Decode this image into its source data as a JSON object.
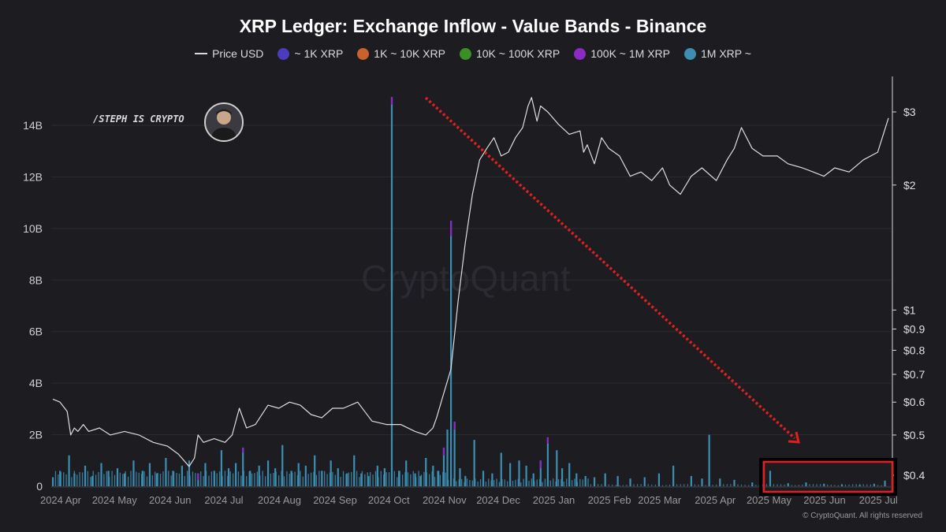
{
  "chart_data": {
    "type": "bar",
    "title": "XRP Ledger: Exchange Inflow - Value Bands - Binance",
    "legend": [
      {
        "name": "Price USD",
        "kind": "line",
        "color": "#d9d9d9"
      },
      {
        "name": "~ 1K XRP",
        "kind": "dot",
        "color": "#4a3bbf"
      },
      {
        "name": "1K ~ 10K XRP",
        "kind": "dot",
        "color": "#c9622b"
      },
      {
        "name": "10K ~ 100K XRP",
        "kind": "dot",
        "color": "#3a8f25"
      },
      {
        "name": "100K ~ 1M XRP",
        "kind": "dot",
        "color": "#8a2bc4"
      },
      {
        "name": "1M XRP ~",
        "kind": "dot",
        "color": "#3c8fb3"
      }
    ],
    "legend_position": "top-center",
    "x_ticks": [
      "2024 Apr",
      "2024 May",
      "2024 Jun",
      "2024 Jul",
      "2024 Aug",
      "2024 Sep",
      "2024 Oct",
      "2024 Nov",
      "2024 Dec",
      "2025 Jan",
      "2025 Feb",
      "2025 Mar",
      "2025 Apr",
      "2025 May",
      "2025 Jun",
      "2025 Jul"
    ],
    "y_left": {
      "ticks": [
        "0",
        "2B",
        "4B",
        "6B",
        "8B",
        "10B",
        "12B",
        "14B"
      ],
      "range": [
        0,
        15000000000
      ]
    },
    "y_right": {
      "scale": "log",
      "ticks": [
        "$0.4",
        "$0.5",
        "$0.6",
        "$0.7",
        "$0.8",
        "$0.9",
        "$1",
        "$2",
        "$3"
      ],
      "range": [
        0.36,
        3.5
      ]
    },
    "price_series": {
      "name": "Price USD",
      "x": [
        0,
        4,
        8,
        10,
        12,
        14,
        17,
        20,
        26,
        32,
        40,
        48,
        56,
        64,
        70,
        76,
        79,
        81,
        84,
        90,
        96,
        100,
        104,
        108,
        113,
        120,
        126,
        132,
        138,
        144,
        150,
        156,
        162,
        170,
        178,
        186,
        194,
        202,
        208,
        212,
        214,
        218,
        222,
        226,
        230,
        234,
        238,
        242,
        246,
        250,
        254,
        258,
        262,
        265,
        267,
        270,
        272,
        276,
        282,
        288,
        294,
        296,
        298,
        302,
        306,
        310,
        316,
        322,
        328,
        334,
        340,
        344,
        350,
        356,
        362,
        370,
        376,
        380,
        384,
        390,
        396,
        404,
        410,
        418,
        424,
        430,
        436,
        444,
        452,
        460,
        466
      ],
      "y": [
        0.61,
        0.6,
        0.57,
        0.5,
        0.52,
        0.51,
        0.53,
        0.51,
        0.52,
        0.5,
        0.51,
        0.5,
        0.48,
        0.47,
        0.45,
        0.42,
        0.44,
        0.5,
        0.48,
        0.49,
        0.48,
        0.5,
        0.58,
        0.52,
        0.53,
        0.59,
        0.58,
        0.6,
        0.59,
        0.56,
        0.55,
        0.58,
        0.58,
        0.6,
        0.54,
        0.53,
        0.53,
        0.51,
        0.5,
        0.52,
        0.55,
        0.63,
        0.72,
        1.05,
        1.45,
        1.9,
        2.3,
        2.45,
        2.6,
        2.35,
        2.4,
        2.6,
        2.75,
        3.1,
        3.25,
        2.85,
        3.1,
        3.0,
        2.8,
        2.65,
        2.7,
        2.4,
        2.5,
        2.25,
        2.6,
        2.45,
        2.35,
        2.1,
        2.15,
        2.05,
        2.2,
        2.0,
        1.9,
        2.1,
        2.2,
        2.05,
        2.3,
        2.45,
        2.75,
        2.45,
        2.35,
        2.35,
        2.25,
        2.2,
        2.15,
        2.1,
        2.2,
        2.15,
        2.3,
        2.4,
        2.9
      ]
    },
    "inflow_series": {
      "name": "1M XRP ~",
      "x": [
        0,
        4,
        9,
        12,
        18,
        22,
        27,
        31,
        36,
        40,
        45,
        50,
        54,
        58,
        63,
        67,
        72,
        76,
        81,
        85,
        90,
        94,
        98,
        102,
        106,
        110,
        115,
        120,
        124,
        128,
        133,
        137,
        141,
        146,
        150,
        155,
        159,
        164,
        168,
        172,
        176,
        181,
        185,
        189,
        193,
        197,
        202,
        205,
        208,
        212,
        215,
        218,
        220,
        222,
        224,
        227,
        230,
        235,
        240,
        245,
        250,
        255,
        260,
        264,
        268,
        272,
        276,
        281,
        284,
        288,
        292,
        297,
        302,
        308,
        315,
        322,
        330,
        338,
        346,
        356,
        362,
        366,
        372,
        380,
        390,
        400,
        410,
        420,
        430,
        440,
        450,
        458,
        464
      ],
      "y": [
        0.35,
        0.6,
        1.2,
        0.5,
        0.8,
        0.4,
        0.9,
        0.6,
        0.7,
        0.5,
        1.0,
        0.6,
        0.9,
        0.5,
        1.1,
        0.6,
        0.8,
        1.0,
        0.5,
        0.9,
        0.6,
        1.4,
        0.7,
        0.9,
        1.5,
        0.6,
        0.8,
        1.0,
        0.7,
        1.6,
        0.6,
        0.9,
        0.8,
        1.2,
        0.6,
        1.0,
        0.7,
        0.5,
        1.2,
        0.5,
        0.4,
        0.8,
        0.7,
        15.1,
        0.6,
        1.0,
        0.5,
        0.4,
        1.1,
        0.8,
        0.6,
        1.5,
        2.2,
        10.3,
        2.5,
        0.7,
        0.4,
        1.8,
        0.6,
        0.5,
        1.3,
        0.9,
        1.0,
        0.8,
        0.5,
        1.0,
        1.9,
        1.4,
        0.7,
        0.9,
        0.5,
        0.4,
        0.35,
        0.5,
        0.4,
        0.3,
        0.35,
        0.5,
        0.8,
        0.4,
        0.3,
        2.0,
        0.3,
        0.25,
        0.15,
        0.6,
        0.12,
        0.15,
        0.1,
        0.08,
        0.05,
        0.1,
        0.22
      ]
    },
    "purple_caps": [
      {
        "x": 189,
        "y": 0.3
      },
      {
        "x": 222,
        "y": 0.6
      },
      {
        "x": 224,
        "y": 0.3
      },
      {
        "x": 218,
        "y": 0.3
      },
      {
        "x": 272,
        "y": 0.3
      },
      {
        "x": 276,
        "y": 0.25
      },
      {
        "x": 81,
        "y": 0.25
      },
      {
        "x": 106,
        "y": 0.2
      }
    ]
  },
  "brand": {
    "handle": "/STEPH IS CRYPTO"
  },
  "watermark": "CryptoQuant",
  "footer": "© CryptoQuant. All rights reserved"
}
